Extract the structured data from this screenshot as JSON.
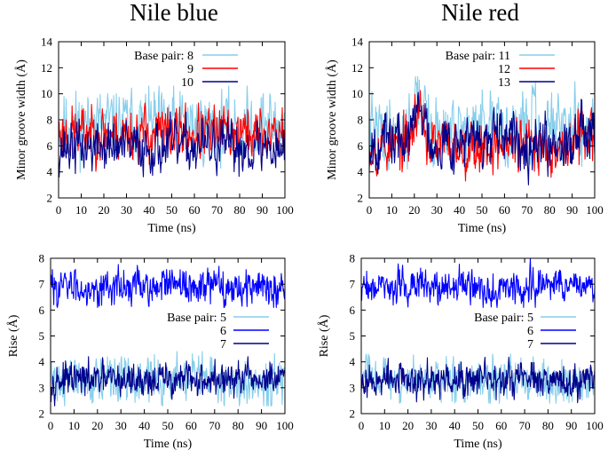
{
  "figure": {
    "titles": [
      "Nile blue",
      "Nile red"
    ]
  },
  "colors": {
    "light_blue": "#87ceeb",
    "red": "#ff0000",
    "navy": "#00008b",
    "blue": "#0000ff"
  },
  "chart_data": [
    {
      "id": "groove-nile-blue",
      "type": "line",
      "title": "Nile blue",
      "xlabel": "Time (ns)",
      "ylabel": "Minor groove width (Å)",
      "xlim": [
        0,
        100
      ],
      "ylim": [
        2,
        14
      ],
      "xticks": [
        0,
        10,
        20,
        30,
        40,
        50,
        60,
        70,
        80,
        90,
        100
      ],
      "yticks": [
        2,
        4,
        6,
        8,
        10,
        12,
        14
      ],
      "legend_position": "top-right",
      "legend_prefix": "Base pair:",
      "series": [
        {
          "name": "8",
          "color": "#87ceeb",
          "mean": 7.6,
          "amp": 1.35,
          "min": 3.0,
          "max": 10.6,
          "seed": 11,
          "points": 420
        },
        {
          "name": "9",
          "color": "#ff0000",
          "mean": 7.0,
          "amp": 1.05,
          "min": 3.6,
          "max": 10.2,
          "seed": 23,
          "points": 420
        },
        {
          "name": "10",
          "color": "#00008b",
          "mean": 5.9,
          "amp": 1.0,
          "min": 3.6,
          "max": 9.6,
          "seed": 37,
          "points": 420
        }
      ]
    },
    {
      "id": "groove-nile-red",
      "type": "line",
      "title": "Nile red",
      "xlabel": "Time (ns)",
      "ylabel": "Minor groove width (Å)",
      "xlim": [
        0,
        100
      ],
      "ylim": [
        2,
        14
      ],
      "xticks": [
        0,
        10,
        20,
        30,
        40,
        50,
        60,
        70,
        80,
        90,
        100
      ],
      "yticks": [
        2,
        4,
        6,
        8,
        10,
        12,
        14
      ],
      "legend_position": "top-right",
      "legend_prefix": "Base pair:",
      "series": [
        {
          "name": "11",
          "color": "#87ceeb",
          "mean": 7.2,
          "amp": 1.3,
          "min": 3.4,
          "max": 11.5,
          "seed": 41,
          "points": 420,
          "bumps": [
            {
              "x": 22,
              "w": 3,
              "h": 2.8
            },
            {
              "x": 73,
              "w": 1.2,
              "h": 3.5
            }
          ]
        },
        {
          "name": "12",
          "color": "#ff0000",
          "mean": 6.0,
          "amp": 1.05,
          "min": 3.3,
          "max": 11.0,
          "seed": 53,
          "points": 420,
          "bumps": [
            {
              "x": 22,
              "w": 3,
              "h": 3.0
            },
            {
              "x": 96,
              "w": 3,
              "h": 1.6
            }
          ]
        },
        {
          "name": "13",
          "color": "#00008b",
          "mean": 6.4,
          "amp": 1.05,
          "min": 3.0,
          "max": 11.0,
          "seed": 67,
          "points": 420,
          "bumps": [
            {
              "x": 22,
              "w": 3,
              "h": 2.6
            },
            {
              "x": 96,
              "w": 3,
              "h": 1.6
            }
          ]
        }
      ]
    },
    {
      "id": "rise-nile-blue",
      "type": "line",
      "title": "",
      "xlabel": "Time (ns)",
      "ylabel": "Rise (Å)",
      "xlim": [
        0,
        100
      ],
      "ylim": [
        2,
        8
      ],
      "xticks": [
        0,
        10,
        20,
        30,
        40,
        50,
        60,
        70,
        80,
        90,
        100
      ],
      "yticks": [
        2,
        3,
        4,
        5,
        6,
        7,
        8
      ],
      "legend_position": "center-right",
      "legend_prefix": "Base pair:",
      "series": [
        {
          "name": "5",
          "color": "#87ceeb",
          "mean": 3.3,
          "amp": 0.45,
          "min": 2.3,
          "max": 4.4,
          "seed": 71,
          "points": 520
        },
        {
          "name": "6",
          "color": "#0000ff",
          "mean": 6.9,
          "amp": 0.35,
          "min": 6.1,
          "max": 8.0,
          "seed": 83,
          "points": 520
        },
        {
          "name": "7",
          "color": "#00008b",
          "mean": 3.3,
          "amp": 0.33,
          "min": 2.3,
          "max": 4.2,
          "seed": 97,
          "points": 520
        }
      ]
    },
    {
      "id": "rise-nile-red",
      "type": "line",
      "title": "",
      "xlabel": "Time (ns)",
      "ylabel": "Rise (Å)",
      "xlim": [
        0,
        100
      ],
      "ylim": [
        2,
        8
      ],
      "xticks": [
        0,
        10,
        20,
        30,
        40,
        50,
        60,
        70,
        80,
        90,
        100
      ],
      "yticks": [
        2,
        3,
        4,
        5,
        6,
        7,
        8
      ],
      "legend_position": "center-right",
      "legend_prefix": "Base pair:",
      "series": [
        {
          "name": "5",
          "color": "#87ceeb",
          "mean": 3.25,
          "amp": 0.42,
          "min": 2.4,
          "max": 4.3,
          "seed": 103,
          "points": 520
        },
        {
          "name": "6",
          "color": "#0000ff",
          "mean": 6.9,
          "amp": 0.33,
          "min": 6.1,
          "max": 8.0,
          "seed": 109,
          "points": 520
        },
        {
          "name": "7",
          "color": "#00008b",
          "mean": 3.3,
          "amp": 0.33,
          "min": 2.0,
          "max": 4.6,
          "seed": 127,
          "points": 520
        }
      ]
    }
  ]
}
